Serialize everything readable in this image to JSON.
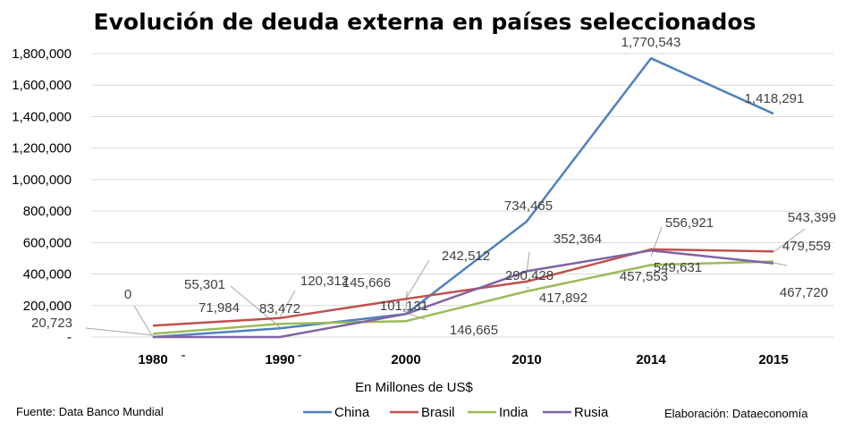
{
  "chart_data": {
    "type": "line",
    "title": "Evolución de deuda externa en países seleccionados",
    "xlabel": "En Millones de US$",
    "ylabel": "",
    "categories": [
      "1980",
      "1990",
      "2000",
      "2010",
      "2014",
      "2015"
    ],
    "ylim": [
      0,
      1800000
    ],
    "yticks": [
      0,
      200000,
      400000,
      600000,
      800000,
      1000000,
      1200000,
      1400000,
      1600000,
      1800000
    ],
    "ytick_labels": [
      "-",
      "200,000",
      "400,000",
      "600,000",
      "800,000",
      "1,000,000",
      "1,200,000",
      "1,400,000",
      "1,600,000",
      "1,800,000"
    ],
    "grid": true,
    "legend_position": "bottom",
    "series": [
      {
        "name": "China",
        "color": "#4F81BD",
        "values": [
          0,
          55301,
          145666,
          734465,
          1770543,
          1418291
        ],
        "labels": [
          "0",
          "55,301",
          "145,666",
          "734,465",
          "1,770,543",
          "1,418,291"
        ]
      },
      {
        "name": "Brasil",
        "color": "#C0504D",
        "values": [
          71984,
          120312,
          242512,
          352364,
          556921,
          543399
        ],
        "labels": [
          "71,984",
          "120,312",
          "242,512",
          "352,364",
          "556,921",
          "543,399"
        ]
      },
      {
        "name": "India",
        "color": "#9BBB59",
        "values": [
          20723,
          83472,
          101131,
          290428,
          457553,
          479559
        ],
        "labels": [
          "20,723",
          "83,472",
          "101,131",
          "290,428",
          "457,553",
          "479,559"
        ]
      },
      {
        "name": "Rusia",
        "color": "#8064A2",
        "values": [
          0,
          0,
          146665,
          417892,
          549631,
          467720
        ],
        "labels": [
          "",
          "",
          "146,665",
          "417,892",
          "549,631",
          "467,720"
        ]
      }
    ],
    "extra_marks": [
      "-",
      "-"
    ]
  },
  "notes": {
    "source": "Fuente: Data Banco Mundial",
    "credit": "Elaboración: Dataeconomía"
  }
}
